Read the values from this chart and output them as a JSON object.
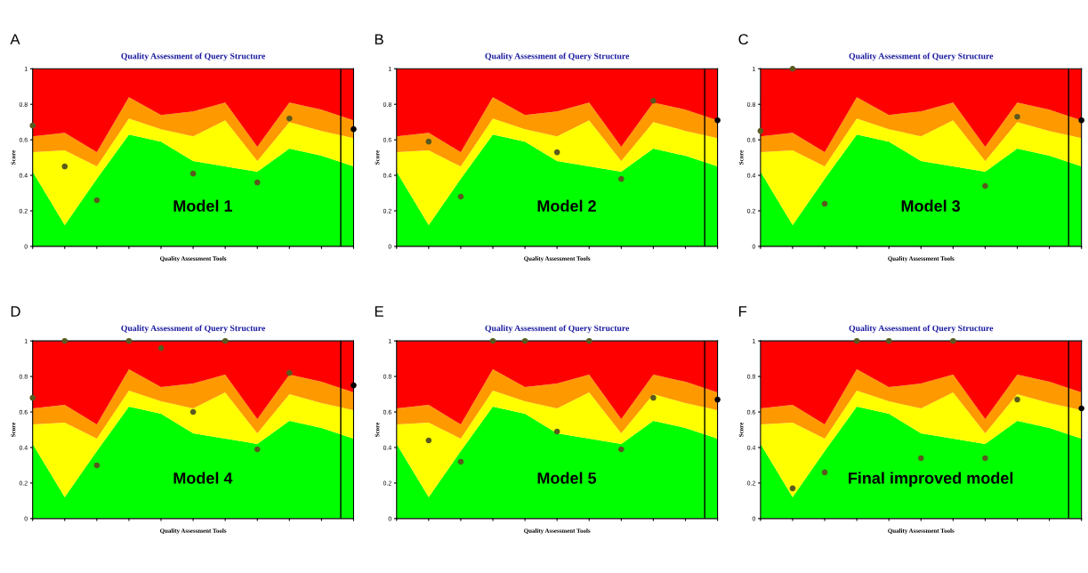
{
  "chart_data": [
    {
      "type": "area",
      "stacked": true,
      "title": "Quality Assessment of Query Structure",
      "xlabel": "Quality Assessment Tools",
      "ylabel": "Score",
      "annotations": [
        "A",
        "Model 1"
      ],
      "categories": [
        null,
        null,
        null,
        null,
        null,
        null,
        null,
        null,
        null,
        null,
        null
      ],
      "ylim": [
        0,
        1
      ],
      "yticks": [
        0,
        0.2,
        0.4,
        0.6,
        0.8,
        1
      ],
      "grid": false,
      "series": [
        {
          "color": "#00ff00",
          "values": [
            0.42,
            0.12,
            0.38,
            0.63,
            0.59,
            0.48,
            0.45,
            0.42,
            0.55,
            0.51,
            0.45
          ]
        },
        {
          "color": "#ffff00",
          "values": [
            0.11,
            0.42,
            0.07,
            0.09,
            0.07,
            0.14,
            0.26,
            0.06,
            0.15,
            0.14,
            0.16
          ]
        },
        {
          "color": "#ff9900",
          "values": [
            0.09,
            0.1,
            0.08,
            0.12,
            0.08,
            0.14,
            0.1,
            0.08,
            0.11,
            0.12,
            0.1
          ]
        },
        {
          "color": "#ff0000",
          "values": [
            0.38,
            0.36,
            0.47,
            0.16,
            0.26,
            0.24,
            0.19,
            0.44,
            0.19,
            0.23,
            0.29
          ]
        },
        {
          "type": "scatter",
          "marker": "circle",
          "color": "#5a5a20",
          "values": [
            0.68,
            0.45,
            0.26,
            null,
            null,
            0.41,
            null,
            0.36,
            0.72,
            null,
            null
          ]
        },
        {
          "type": "scatter",
          "marker": "circle",
          "color": "#000000",
          "values": [
            null,
            null,
            null,
            null,
            null,
            null,
            null,
            null,
            null,
            null,
            0.66
          ]
        }
      ]
    },
    {
      "type": "area",
      "stacked": true,
      "title": "Quality Assessment of Query Structure",
      "xlabel": "Quality Assessment Tools",
      "ylabel": "Score",
      "annotations": [
        "B",
        "Model 2"
      ],
      "categories": [
        null,
        null,
        null,
        null,
        null,
        null,
        null,
        null,
        null,
        null,
        null
      ],
      "ylim": [
        0,
        1
      ],
      "yticks": [
        0,
        0.2,
        0.4,
        0.6,
        0.8,
        1
      ],
      "grid": false,
      "series": [
        {
          "color": "#00ff00",
          "values": [
            0.42,
            0.12,
            0.38,
            0.63,
            0.59,
            0.48,
            0.45,
            0.42,
            0.55,
            0.51,
            0.45
          ]
        },
        {
          "color": "#ffff00",
          "values": [
            0.11,
            0.42,
            0.07,
            0.09,
            0.07,
            0.14,
            0.26,
            0.06,
            0.15,
            0.14,
            0.16
          ]
        },
        {
          "color": "#ff9900",
          "values": [
            0.09,
            0.1,
            0.08,
            0.12,
            0.08,
            0.14,
            0.1,
            0.08,
            0.11,
            0.12,
            0.1
          ]
        },
        {
          "color": "#ff0000",
          "values": [
            0.38,
            0.36,
            0.47,
            0.16,
            0.26,
            0.24,
            0.19,
            0.44,
            0.19,
            0.23,
            0.29
          ]
        },
        {
          "type": "scatter",
          "marker": "circle",
          "color": "#5a5a20",
          "values": [
            null,
            0.59,
            0.28,
            null,
            null,
            0.53,
            null,
            0.38,
            0.82,
            null,
            null
          ]
        },
        {
          "type": "scatter",
          "marker": "circle",
          "color": "#000000",
          "values": [
            null,
            null,
            null,
            null,
            null,
            null,
            null,
            null,
            null,
            null,
            0.71
          ]
        }
      ]
    },
    {
      "type": "area",
      "stacked": true,
      "title": "Quality Assessment of Query Structure",
      "xlabel": "Quality Assessment Tools",
      "ylabel": "Score",
      "annotations": [
        "C",
        "Model 3"
      ],
      "categories": [
        null,
        null,
        null,
        null,
        null,
        null,
        null,
        null,
        null,
        null,
        null
      ],
      "ylim": [
        0,
        1
      ],
      "yticks": [
        0,
        0.2,
        0.4,
        0.6,
        0.8,
        1
      ],
      "grid": false,
      "series": [
        {
          "color": "#00ff00",
          "values": [
            0.42,
            0.12,
            0.38,
            0.63,
            0.59,
            0.48,
            0.45,
            0.42,
            0.55,
            0.51,
            0.45
          ]
        },
        {
          "color": "#ffff00",
          "values": [
            0.11,
            0.42,
            0.07,
            0.09,
            0.07,
            0.14,
            0.26,
            0.06,
            0.15,
            0.14,
            0.16
          ]
        },
        {
          "color": "#ff9900",
          "values": [
            0.09,
            0.1,
            0.08,
            0.12,
            0.08,
            0.14,
            0.1,
            0.08,
            0.11,
            0.12,
            0.1
          ]
        },
        {
          "color": "#ff0000",
          "values": [
            0.38,
            0.36,
            0.47,
            0.16,
            0.26,
            0.24,
            0.19,
            0.44,
            0.19,
            0.23,
            0.29
          ]
        },
        {
          "type": "scatter",
          "marker": "circle",
          "color": "#5a5a20",
          "values": [
            0.65,
            1.0,
            0.24,
            null,
            null,
            null,
            null,
            0.34,
            0.73,
            null,
            null
          ]
        },
        {
          "type": "scatter",
          "marker": "circle",
          "color": "#000000",
          "values": [
            null,
            null,
            null,
            null,
            null,
            null,
            null,
            null,
            null,
            null,
            0.71
          ]
        }
      ]
    },
    {
      "type": "area",
      "stacked": true,
      "title": "Quality Assessment of Query Structure",
      "xlabel": "Quality Assessment Tools",
      "ylabel": "Score",
      "annotations": [
        "D",
        "Model 4"
      ],
      "categories": [
        null,
        null,
        null,
        null,
        null,
        null,
        null,
        null,
        null,
        null,
        null
      ],
      "ylim": [
        0,
        1
      ],
      "yticks": [
        0,
        0.2,
        0.4,
        0.6,
        0.8,
        1
      ],
      "grid": false,
      "series": [
        {
          "color": "#00ff00",
          "values": [
            0.42,
            0.12,
            0.38,
            0.63,
            0.59,
            0.48,
            0.45,
            0.42,
            0.55,
            0.51,
            0.45
          ]
        },
        {
          "color": "#ffff00",
          "values": [
            0.11,
            0.42,
            0.07,
            0.09,
            0.07,
            0.14,
            0.26,
            0.06,
            0.15,
            0.14,
            0.16
          ]
        },
        {
          "color": "#ff9900",
          "values": [
            0.09,
            0.1,
            0.08,
            0.12,
            0.08,
            0.14,
            0.1,
            0.08,
            0.11,
            0.12,
            0.1
          ]
        },
        {
          "color": "#ff0000",
          "values": [
            0.38,
            0.36,
            0.47,
            0.16,
            0.26,
            0.24,
            0.19,
            0.44,
            0.19,
            0.23,
            0.29
          ]
        },
        {
          "type": "scatter",
          "marker": "circle",
          "color": "#5a5a20",
          "values": [
            0.68,
            1.0,
            0.3,
            1.0,
            0.96,
            0.6,
            1.0,
            0.39,
            0.82,
            null,
            null
          ]
        },
        {
          "type": "scatter",
          "marker": "circle",
          "color": "#000000",
          "values": [
            null,
            null,
            null,
            null,
            null,
            null,
            null,
            null,
            null,
            null,
            0.75
          ]
        }
      ]
    },
    {
      "type": "area",
      "stacked": true,
      "title": "Quality Assessment of Query Structure",
      "xlabel": "Quality Assessment Tools",
      "ylabel": "Score",
      "annotations": [
        "E",
        "Model 5"
      ],
      "categories": [
        null,
        null,
        null,
        null,
        null,
        null,
        null,
        null,
        null,
        null,
        null
      ],
      "ylim": [
        0,
        1
      ],
      "yticks": [
        0,
        0.2,
        0.4,
        0.6,
        0.8,
        1
      ],
      "grid": false,
      "series": [
        {
          "color": "#00ff00",
          "values": [
            0.42,
            0.12,
            0.38,
            0.63,
            0.59,
            0.48,
            0.45,
            0.42,
            0.55,
            0.51,
            0.45
          ]
        },
        {
          "color": "#ffff00",
          "values": [
            0.11,
            0.42,
            0.07,
            0.09,
            0.07,
            0.14,
            0.26,
            0.06,
            0.15,
            0.14,
            0.16
          ]
        },
        {
          "color": "#ff9900",
          "values": [
            0.09,
            0.1,
            0.08,
            0.12,
            0.08,
            0.14,
            0.1,
            0.08,
            0.11,
            0.12,
            0.1
          ]
        },
        {
          "color": "#ff0000",
          "values": [
            0.38,
            0.36,
            0.47,
            0.16,
            0.26,
            0.24,
            0.19,
            0.44,
            0.19,
            0.23,
            0.29
          ]
        },
        {
          "type": "scatter",
          "marker": "circle",
          "color": "#5a5a20",
          "values": [
            null,
            0.44,
            0.32,
            1.0,
            1.0,
            0.49,
            1.0,
            0.39,
            0.68,
            null,
            null
          ]
        },
        {
          "type": "scatter",
          "marker": "circle",
          "color": "#000000",
          "values": [
            null,
            null,
            null,
            null,
            null,
            null,
            null,
            null,
            null,
            null,
            0.67
          ]
        }
      ]
    },
    {
      "type": "area",
      "stacked": true,
      "title": "Quality Assessment of Query Structure",
      "xlabel": "Quality Assessment Tools",
      "ylabel": "Score",
      "annotations": [
        "F",
        "Final improved model"
      ],
      "categories": [
        null,
        null,
        null,
        null,
        null,
        null,
        null,
        null,
        null,
        null,
        null
      ],
      "ylim": [
        0,
        1
      ],
      "yticks": [
        0,
        0.2,
        0.4,
        0.6,
        0.8,
        1
      ],
      "grid": false,
      "series": [
        {
          "color": "#00ff00",
          "values": [
            0.42,
            0.12,
            0.38,
            0.63,
            0.59,
            0.48,
            0.45,
            0.42,
            0.55,
            0.51,
            0.45
          ]
        },
        {
          "color": "#ffff00",
          "values": [
            0.11,
            0.42,
            0.07,
            0.09,
            0.07,
            0.14,
            0.26,
            0.06,
            0.15,
            0.14,
            0.16
          ]
        },
        {
          "color": "#ff9900",
          "values": [
            0.09,
            0.1,
            0.08,
            0.12,
            0.08,
            0.14,
            0.1,
            0.08,
            0.11,
            0.12,
            0.1
          ]
        },
        {
          "color": "#ff0000",
          "values": [
            0.38,
            0.36,
            0.47,
            0.16,
            0.26,
            0.24,
            0.19,
            0.44,
            0.19,
            0.23,
            0.29
          ]
        },
        {
          "type": "scatter",
          "marker": "circle",
          "color": "#5a5a20",
          "values": [
            null,
            0.17,
            0.26,
            1.0,
            1.0,
            0.34,
            1.0,
            0.34,
            0.67,
            null,
            null
          ]
        },
        {
          "type": "scatter",
          "marker": "circle",
          "color": "#000000",
          "values": [
            null,
            null,
            null,
            null,
            null,
            null,
            null,
            null,
            null,
            null,
            0.62
          ]
        }
      ]
    }
  ]
}
